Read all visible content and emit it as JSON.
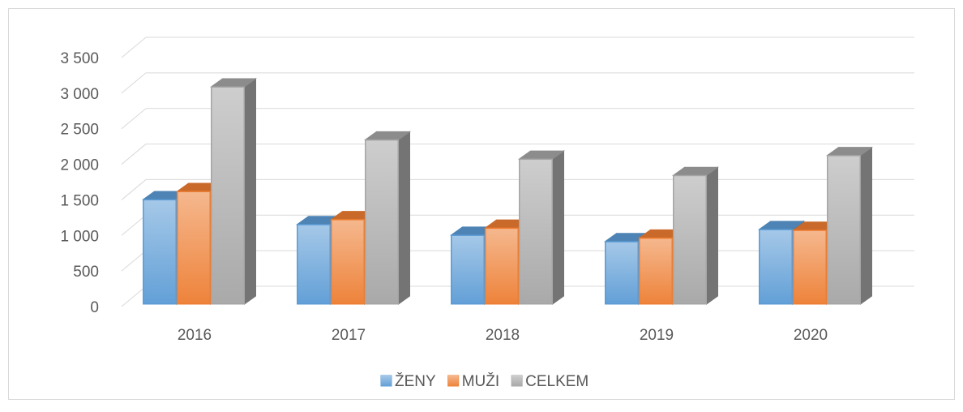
{
  "chart_data": {
    "type": "bar3d",
    "categories": [
      "2016",
      "2017",
      "2018",
      "2019",
      "2020"
    ],
    "series": [
      {
        "name": "ŽENY",
        "color": "#5b9bd5",
        "values": [
          1470,
          1120,
          970,
          880,
          1050
        ]
      },
      {
        "name": "MUŽI",
        "color": "#ed7d31",
        "values": [
          1585,
          1190,
          1070,
          930,
          1040
        ]
      },
      {
        "name": "CELKEM",
        "color": "#a5a5a5",
        "values": [
          3055,
          2310,
          2040,
          1810,
          2090
        ]
      }
    ],
    "ylim": [
      0,
      3500
    ],
    "yticks": [
      0,
      500,
      {
        "value": 1000,
        "label": "1 000"
      },
      {
        "value": 1500,
        "label": "1 500"
      },
      {
        "value": 2000,
        "label": "2 000"
      },
      {
        "value": 2500,
        "label": "2 500"
      },
      {
        "value": 3000,
        "label": "3 000"
      },
      {
        "value": 3500,
        "label": "3 500"
      }
    ],
    "grid": true,
    "legend": "bottom"
  }
}
